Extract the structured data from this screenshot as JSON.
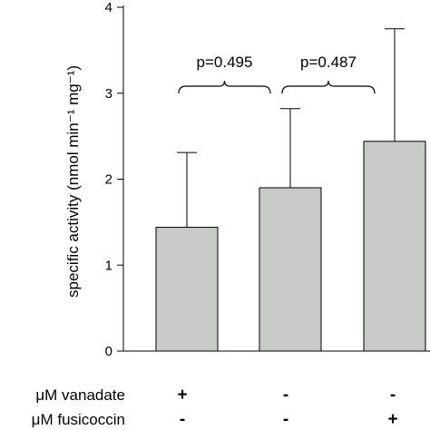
{
  "chart_data": {
    "type": "bar",
    "title": "",
    "xlabel": "",
    "ylabel": "specific activity (nmol min⁻¹ mg⁻¹)",
    "ylim": [
      0,
      4
    ],
    "yticks": [
      "0",
      "1",
      "2",
      "3",
      "4"
    ],
    "bars": [
      {
        "value": 1.44,
        "error_top": 2.31
      },
      {
        "value": 1.9,
        "error_top": 2.82
      },
      {
        "value": 2.44,
        "error_top": 3.75
      }
    ],
    "bar_color": "#c8cac8",
    "treatment_rows": [
      {
        "label": "μM vanadate",
        "marks": [
          "+",
          "-",
          "-"
        ]
      },
      {
        "label": "μM fusicoccin",
        "marks": [
          "-",
          "-",
          "+"
        ]
      }
    ],
    "annotations": [
      {
        "text": "p=0.495",
        "between": [
          0,
          1
        ]
      },
      {
        "text": "p=0.487",
        "between": [
          1,
          2
        ]
      }
    ]
  }
}
